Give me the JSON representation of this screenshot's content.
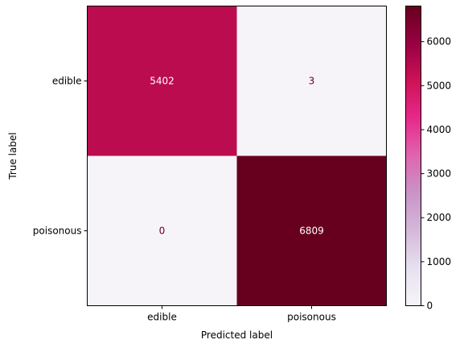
{
  "chart_data": {
    "type": "heatmap",
    "rows": [
      "edible",
      "poisonous"
    ],
    "cols": [
      "edible",
      "poisonous"
    ],
    "values": [
      [
        5402,
        3
      ],
      [
        0,
        6809
      ]
    ],
    "xlabel": "Predicted label",
    "ylabel": "True label",
    "colorbar": {
      "min": 0,
      "max": 6809,
      "ticks": [
        0,
        1000,
        2000,
        3000,
        4000,
        5000,
        6000
      ],
      "colormap": "PuRd",
      "low_color": "#f7f4f9",
      "high_color": "#67001f"
    },
    "text_color_light": "#ffffff",
    "text_color_dark": "#67001f"
  }
}
